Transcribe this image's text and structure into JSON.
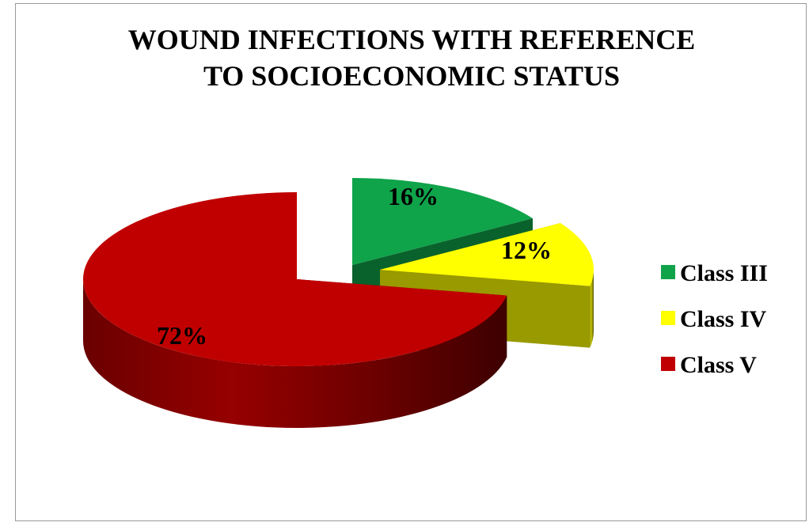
{
  "chart_data": {
    "type": "pie",
    "title_lines": [
      "WOUND INFECTIONS WITH REFERENCE",
      "TO SOCIOECONOMIC STATUS"
    ],
    "categories": [
      "Class III",
      "Class IV",
      "Class V"
    ],
    "values": [
      16,
      12,
      72
    ],
    "labels": [
      "16%",
      "12%",
      "72%"
    ],
    "colors": [
      "#0fa34a",
      "#ffff00",
      "#c00000"
    ],
    "three_d": true,
    "exploded": true,
    "legend_position": "right"
  }
}
